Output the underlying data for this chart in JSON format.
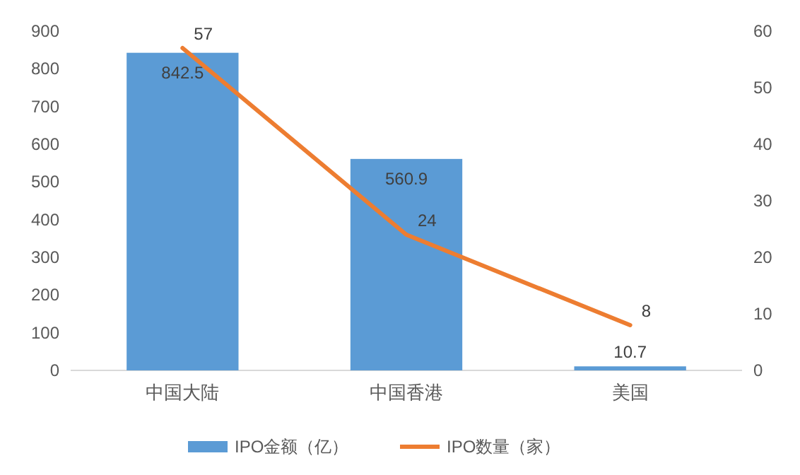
{
  "chart_data": {
    "type": "bar",
    "categories": [
      "中国大陆",
      "中国香港",
      "美国"
    ],
    "series": [
      {
        "name": "IPO金额（亿）",
        "color": "#5b9bd5",
        "values": [
          842.5,
          560.9,
          10.7
        ]
      },
      {
        "name": "IPO数量（家）",
        "type": "line",
        "axis": "y2",
        "color": "#ed7d31",
        "values": [
          57,
          24,
          8
        ]
      }
    ],
    "ylim": [
      0,
      900
    ],
    "yticks": [
      0,
      100,
      200,
      300,
      400,
      500,
      600,
      700,
      800,
      900
    ],
    "y2lim": [
      0,
      60
    ],
    "y2ticks": [
      0,
      10,
      20,
      30,
      40,
      50,
      60
    ],
    "data_labels": true,
    "legend": "bottom",
    "grid": false,
    "marker": "none",
    "line_style": "solid"
  }
}
